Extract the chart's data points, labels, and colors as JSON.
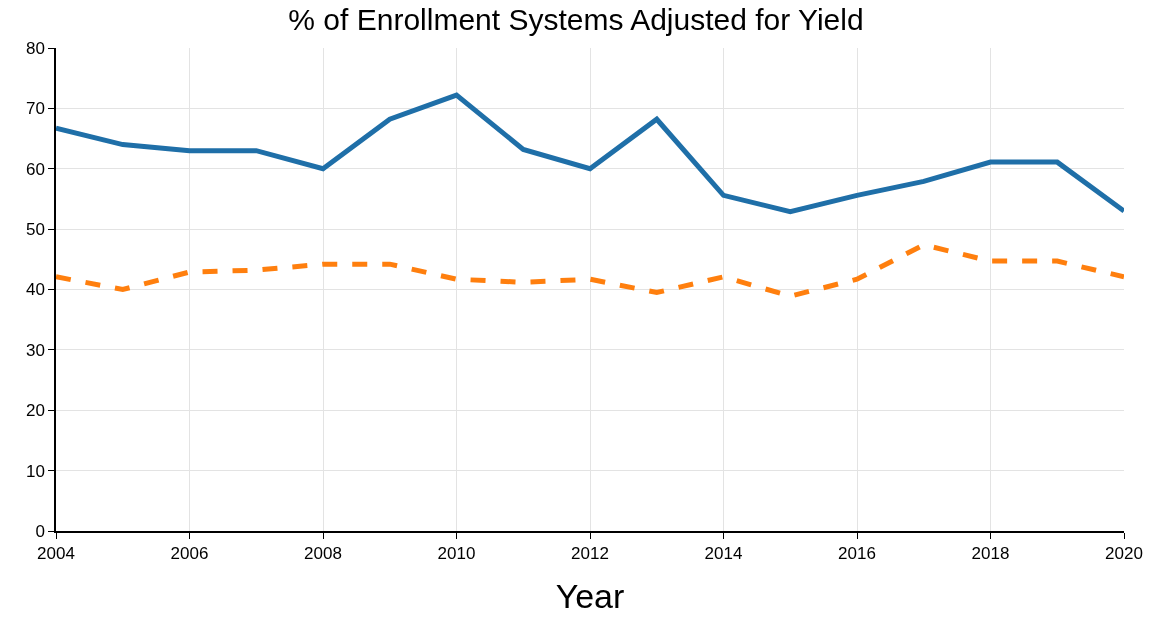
{
  "chart_data": {
    "type": "line",
    "title": "% of Enrollment Systems Adjusted for Yield",
    "xlabel": "Year",
    "x": [
      2004,
      2005,
      2006,
      2007,
      2008,
      2009,
      2010,
      2011,
      2012,
      2013,
      2014,
      2015,
      2016,
      2017,
      2018,
      2019,
      2020
    ],
    "series": [
      {
        "color": "#1f6fa8",
        "line_style": "solid",
        "values": [
          66.7,
          64,
          63,
          63,
          60,
          68.2,
          72.2,
          63.2,
          60,
          68.2,
          55.6,
          52.9,
          55.6,
          57.9,
          61.1,
          61.1,
          53
        ]
      },
      {
        "color": "#ff7f0e",
        "line_style": "dashed",
        "values": [
          42.1,
          40,
          42.9,
          43.2,
          44.2,
          44.2,
          41.7,
          41.2,
          41.7,
          39.5,
          42.1,
          38.9,
          41.7,
          47.4,
          44.7,
          44.7,
          42.1
        ]
      }
    ],
    "xlim": [
      2004,
      2020
    ],
    "xticks": [
      2004,
      2006,
      2008,
      2010,
      2012,
      2014,
      2016,
      2018,
      2020
    ],
    "ylim": [
      0,
      80
    ],
    "yticks": [
      0,
      10,
      20,
      30,
      40,
      50,
      60,
      70,
      80
    ],
    "grid": true,
    "marker": "none"
  }
}
